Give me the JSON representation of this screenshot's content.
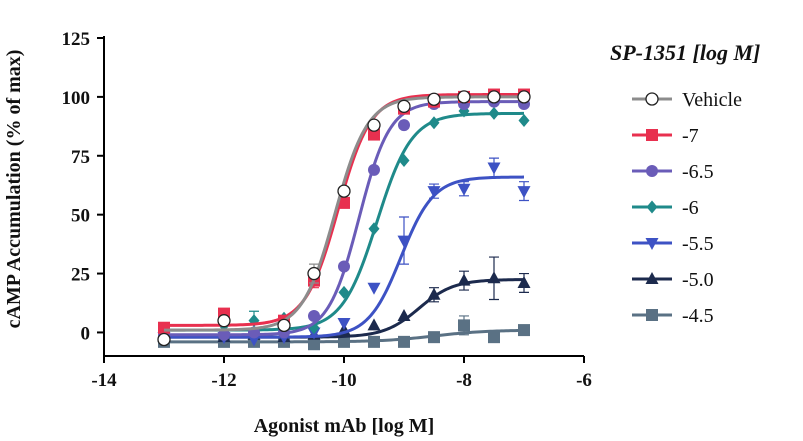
{
  "chart_data": {
    "type": "line",
    "xlabel": "Agonist mAb [log M]",
    "ylabel": "cAMP Accumulation (% of max)",
    "xlim": [
      -14,
      -6
    ],
    "ylim": [
      -10,
      125
    ],
    "xticks": [
      -14,
      -12,
      -10,
      -8,
      -6
    ],
    "xtick_labels": [
      "-14",
      "-12",
      "-10",
      "-8",
      "-6"
    ],
    "yticks": [
      0,
      25,
      50,
      75,
      100,
      125
    ],
    "ytick_labels": [
      "0",
      "25",
      "50",
      "75",
      "100",
      "125"
    ],
    "grid": false,
    "legend": {
      "title": "SP-1351 [log M]",
      "position": "right"
    },
    "series": [
      {
        "name": "Vehicle",
        "color": "#8c8c8c",
        "marker": "circle-open",
        "x": [
          -13,
          -12,
          -11,
          -10.5,
          -10,
          -9.5,
          -9,
          -8.5,
          -8,
          -7.5,
          -7
        ],
        "y": [
          -3,
          5,
          3,
          25,
          60,
          88,
          96,
          99,
          100,
          100,
          100
        ],
        "err": [
          0,
          0,
          0,
          4,
          0,
          0,
          0,
          0,
          0,
          0,
          0
        ],
        "fit": {
          "bottom": 1,
          "top": 100,
          "logec50": -10.15,
          "hill": 1.6
        }
      },
      {
        "name": "-7",
        "color": "#e8304f",
        "marker": "square",
        "x": [
          -13,
          -12,
          -11,
          -10.5,
          -10,
          -9.5,
          -9,
          -8.5,
          -8,
          -7.5,
          -7
        ],
        "y": [
          2,
          8,
          5,
          22,
          55,
          84,
          95,
          98,
          100,
          101,
          101
        ],
        "err": [
          0,
          0,
          0,
          3,
          0,
          0,
          0,
          0,
          0,
          0,
          0
        ],
        "fit": {
          "bottom": 3,
          "top": 101,
          "logec50": -10.1,
          "hill": 1.6
        }
      },
      {
        "name": "-6.5",
        "color": "#6a5cb8",
        "marker": "circle",
        "x": [
          -13,
          -12,
          -11.5,
          -11,
          -10.5,
          -10,
          -9.5,
          -9,
          -8.5,
          -8,
          -7.5,
          -7
        ],
        "y": [
          -1,
          -1,
          0,
          0,
          7,
          28,
          69,
          88,
          97,
          97,
          98,
          97
        ],
        "err": [
          0,
          0,
          0,
          0,
          0,
          0,
          0,
          0,
          0,
          0,
          0,
          0
        ],
        "fit": {
          "bottom": -1,
          "top": 98,
          "logec50": -9.75,
          "hill": 1.7
        }
      },
      {
        "name": "-6",
        "color": "#1f8a8a",
        "marker": "diamond",
        "x": [
          -13,
          -12,
          -11.5,
          -11,
          -10.5,
          -10,
          -9.5,
          -9,
          -8.5,
          -8,
          -7.5,
          -7
        ],
        "y": [
          1,
          3,
          5,
          6,
          2,
          17,
          44,
          73,
          89,
          94,
          93,
          90
        ],
        "err": [
          0,
          0,
          4,
          0,
          0,
          0,
          0,
          0,
          0,
          0,
          0,
          0
        ],
        "fit": {
          "bottom": 1,
          "top": 93,
          "logec50": -9.45,
          "hill": 1.5
        }
      },
      {
        "name": "-5.5",
        "color": "#3d52c4",
        "marker": "triangle-down",
        "x": [
          -13,
          -12,
          -11.5,
          -11,
          -10.5,
          -10,
          -9.5,
          -9,
          -8.5,
          -8,
          -7.5,
          -7
        ],
        "y": [
          -2,
          -2,
          -3,
          -2,
          0,
          4,
          19,
          39,
          60,
          61,
          70,
          60
        ],
        "err": [
          0,
          0,
          0,
          0,
          0,
          0,
          0,
          10,
          3,
          3,
          4,
          4
        ],
        "fit": {
          "bottom": -2,
          "top": 66,
          "logec50": -9.05,
          "hill": 1.6
        }
      },
      {
        "name": "-5.0",
        "color": "#1c2a4d",
        "marker": "triangle",
        "x": [
          -13,
          -12,
          -11.5,
          -11,
          -10.5,
          -10,
          -9.5,
          -9,
          -8.5,
          -8,
          -7.5,
          -7
        ],
        "y": [
          -2,
          -2,
          -1,
          -2,
          -1,
          1,
          3,
          7,
          16,
          22,
          23,
          21
        ],
        "err": [
          0,
          0,
          0,
          0,
          0,
          0,
          0,
          0,
          3,
          4,
          9,
          4
        ],
        "fit": {
          "bottom": -2,
          "top": 22.5,
          "logec50": -8.75,
          "hill": 1.5
        }
      },
      {
        "name": "-4.5",
        "color": "#5a7184",
        "marker": "square",
        "x": [
          -13,
          -12,
          -11.5,
          -11,
          -10.5,
          -10,
          -9.5,
          -9,
          -8.5,
          -8,
          -7.5,
          -7
        ],
        "y": [
          -4,
          -4,
          -4,
          -4,
          -5,
          -4,
          -4,
          -4,
          -2,
          3,
          -2,
          1
        ],
        "err": [
          0,
          0,
          0,
          0,
          0,
          0,
          0,
          0,
          0,
          4,
          0,
          0
        ],
        "fit": {
          "bottom": -4,
          "top": 1,
          "logec50": -8.5,
          "hill": 1.0
        }
      }
    ]
  }
}
